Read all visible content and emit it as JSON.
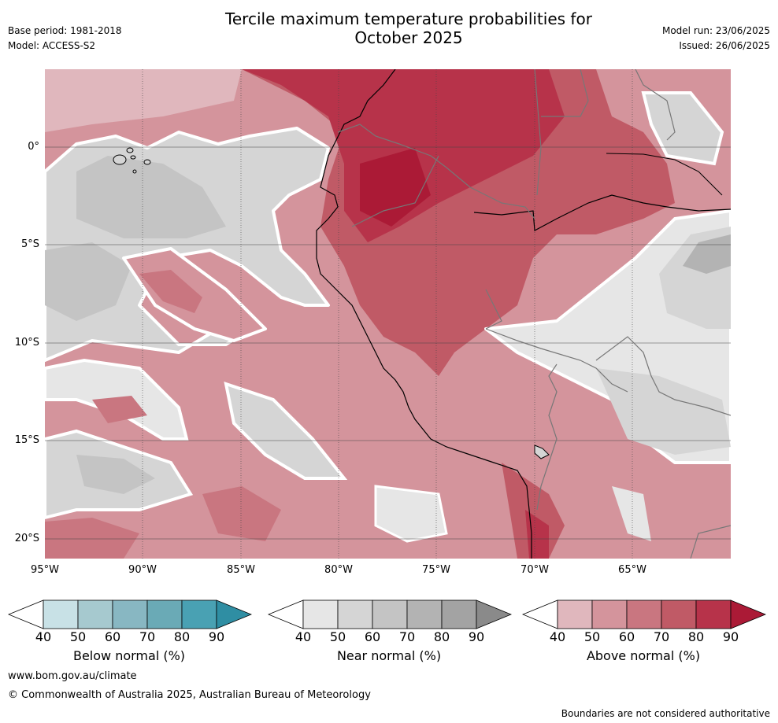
{
  "header": {
    "title_line1": "Tercile maximum temperature probabilities for",
    "title_line2": "October 2025",
    "base_period": "Base period: 1981-2018",
    "model": "Model: ACCESS-S2",
    "model_run": "Model run: 23/06/2025",
    "issued": "Issued: 26/06/2025"
  },
  "map": {
    "lat_ticks": [
      "0°",
      "5°S",
      "10°S",
      "15°S",
      "20°S"
    ],
    "lon_ticks": [
      "95°W",
      "90°W",
      "85°W",
      "80°W",
      "75°W",
      "70°W",
      "65°W"
    ]
  },
  "colorbars": [
    {
      "label": "Below normal (%)",
      "ticks": [
        "40",
        "50",
        "60",
        "70",
        "80",
        "90"
      ],
      "colors": [
        "#ffffff",
        "#c8e1e6",
        "#a6c9cf",
        "#88b7c2",
        "#6aaab6",
        "#49a1b3",
        "#2f8ea3"
      ]
    },
    {
      "label": "Near normal (%)",
      "ticks": [
        "40",
        "50",
        "60",
        "70",
        "80",
        "90"
      ],
      "colors": [
        "#ffffff",
        "#e6e6e6",
        "#d5d5d5",
        "#c4c4c4",
        "#b3b3b3",
        "#a3a3a3",
        "#8a8a8a"
      ]
    },
    {
      "label": "Above normal (%)",
      "ticks": [
        "40",
        "50",
        "60",
        "70",
        "80",
        "90"
      ],
      "colors": [
        "#ffffff",
        "#e0b7bd",
        "#d4949c",
        "#c97680",
        "#c05a66",
        "#b7334a",
        "#ab1a36"
      ]
    }
  ],
  "footer": {
    "website": "www.bom.gov.au/climate",
    "copyright": "© Commonwealth of Australia 2025, Australian Bureau of Meteorology",
    "disclaimer": "Boundaries are not considered authoritative"
  }
}
